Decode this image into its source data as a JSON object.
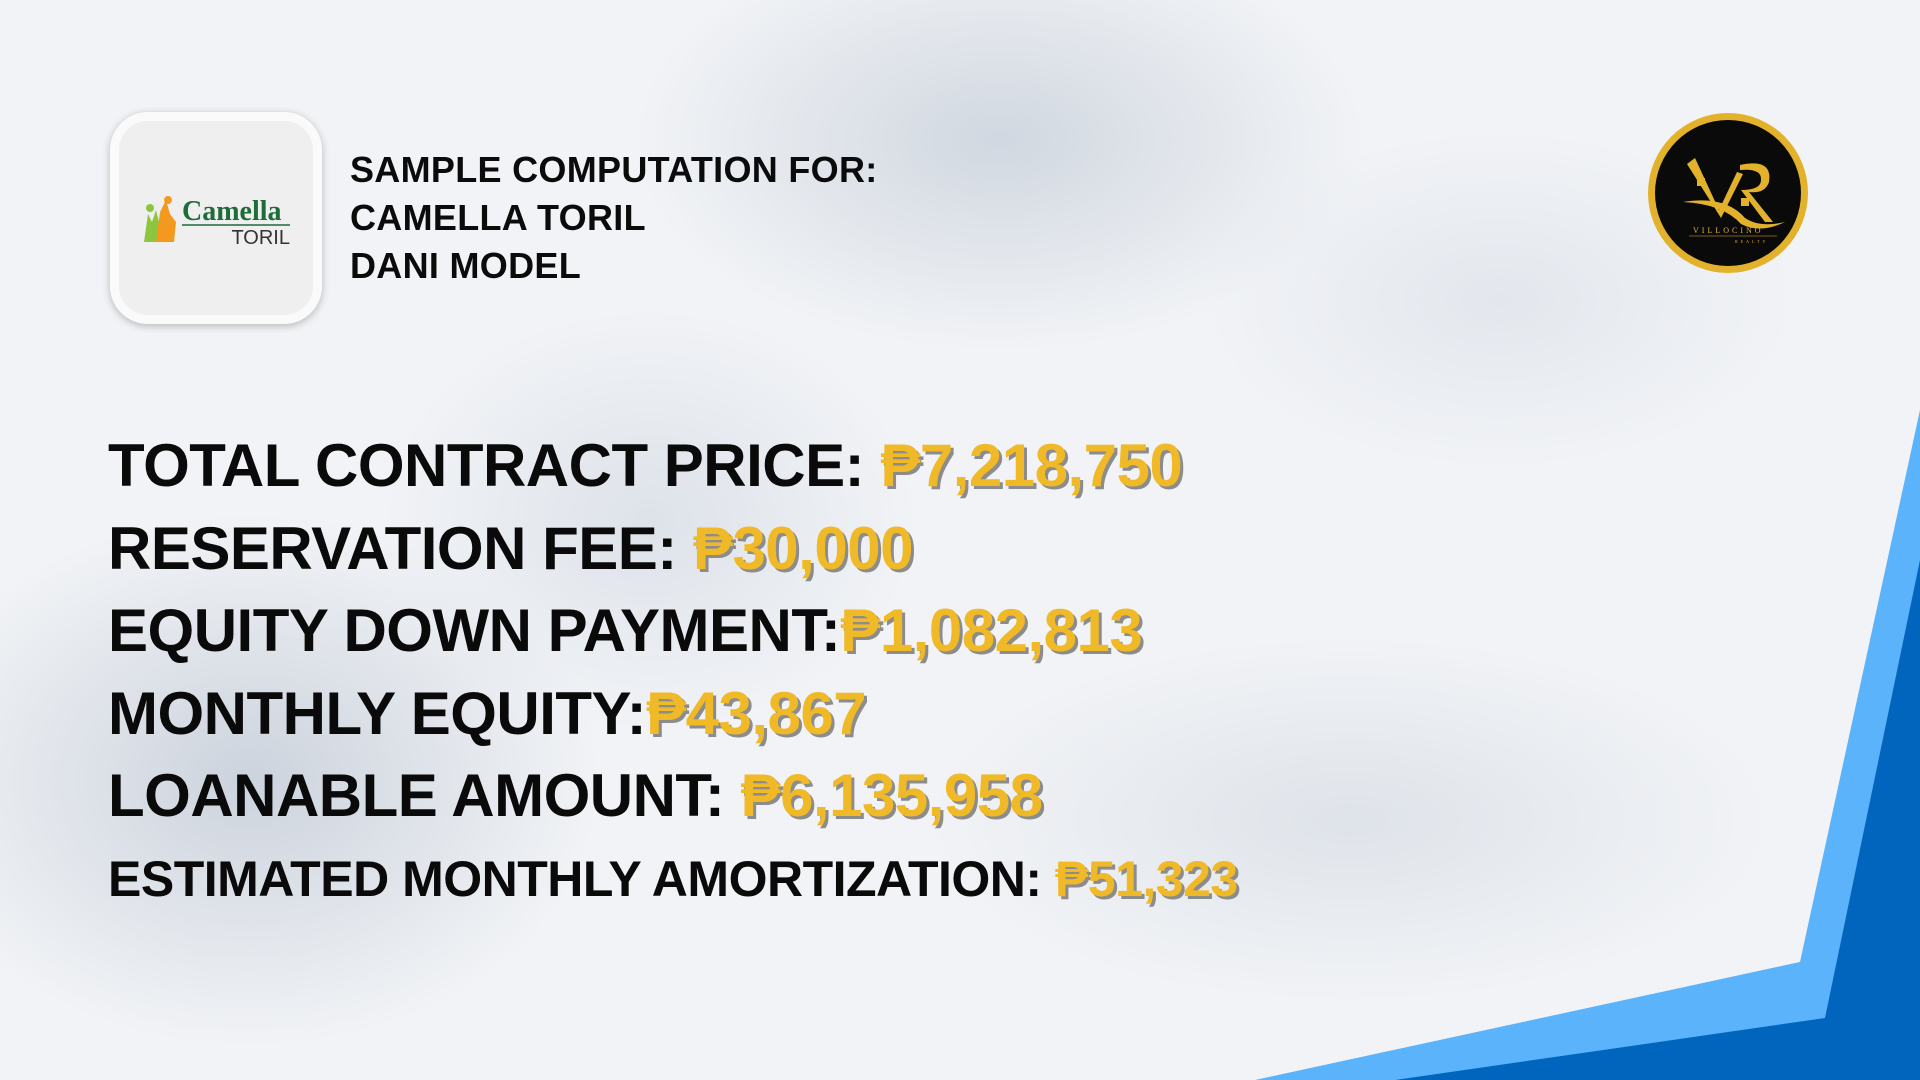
{
  "header": {
    "lines": [
      "SAMPLE COMPUTATION FOR:",
      "CAMELLA TORIL",
      "DANI MODEL"
    ]
  },
  "project_logo": {
    "brand": "Camella",
    "location": "TORIL"
  },
  "realty_logo": {
    "name": "VILLOCINO",
    "subtitle": "REALTY",
    "monogram": "VR"
  },
  "rows": [
    {
      "label": "TOTAL CONTRACT PRICE: ",
      "value": "₱7,218,750"
    },
    {
      "label": "RESERVATION FEE: ",
      "value": "₱30,000"
    },
    {
      "label": "EQUITY DOWN PAYMENT:",
      "value": "₱1,082,813"
    },
    {
      "label": "MONTHLY EQUITY:",
      "value": "₱43,867"
    },
    {
      "label": "LOANABLE AMOUNT: ",
      "value": "₱6,135,958"
    },
    {
      "label": "ESTIMATED MONTHLY AMORTIZATION: ",
      "value": "₱51,323"
    }
  ],
  "colors": {
    "value": "#f0b928",
    "accent_light_blue": "#5ab3fb",
    "accent_dark_blue": "#0265bd",
    "gold": "#e2b22c"
  }
}
